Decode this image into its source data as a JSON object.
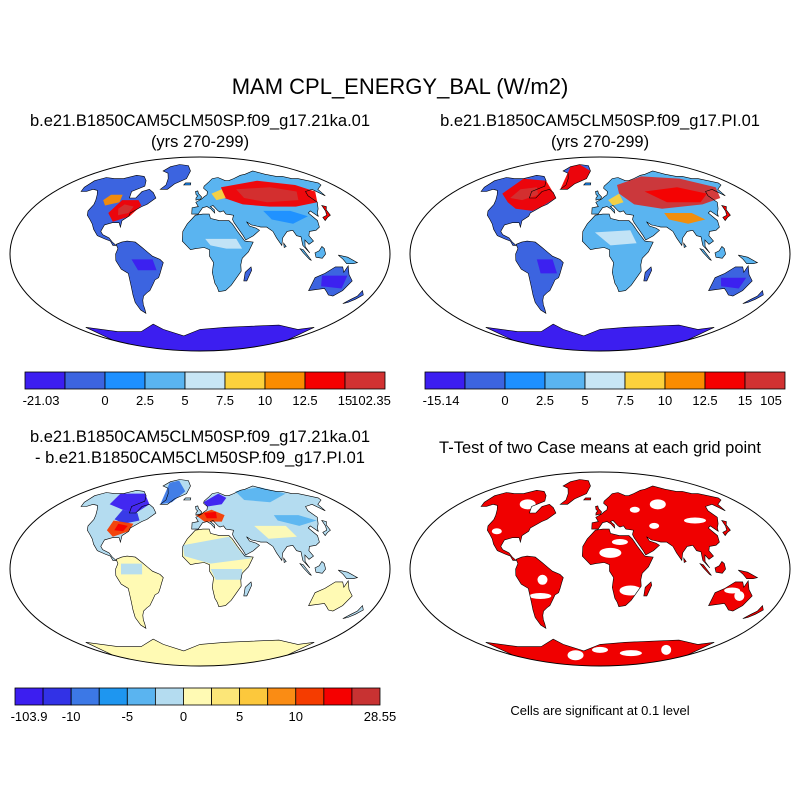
{
  "title": "MAM CPL_ENERGY_BAL (W/m2)",
  "panels": [
    {
      "id": "case1",
      "title_line1": "b.e21.B1850CAM5CLM50SP.f09_g17.21ka.01",
      "title_line2": "(yrs 270-299)",
      "colorbar": {
        "labels": [
          "-21.03",
          "0",
          "2.5",
          "5",
          "7.5",
          "10",
          "12.5",
          "15",
          "102.35"
        ],
        "colors": [
          "#3c1ef0",
          "#3c64e0",
          "#1e90ff",
          "#5ab4f0",
          "#c8e6f5",
          "#fcd23c",
          "#fa8c00",
          "#f50000",
          "#d23232"
        ]
      }
    },
    {
      "id": "case2",
      "title_line1": "b.e21.B1850CAM5CLM50SP.f09_g17.PI.01",
      "title_line2": "(yrs 270-299)",
      "colorbar": {
        "labels": [
          "-15.14",
          "0",
          "2.5",
          "5",
          "7.5",
          "10",
          "12.5",
          "15",
          "105"
        ],
        "colors": [
          "#3c1ef0",
          "#3c64e0",
          "#1e90ff",
          "#5ab4f0",
          "#c8e6f5",
          "#fcd23c",
          "#fa8c00",
          "#f50000",
          "#d23232"
        ]
      }
    },
    {
      "id": "diff",
      "title_line1": "b.e21.B1850CAM5CLM50SP.f09_g17.21ka.01",
      "title_line2": "- b.e21.B1850CAM5CLM50SP.f09_g17.PI.01",
      "colorbar": {
        "labels": [
          "-103.9",
          "-10",
          "-5",
          "0",
          "5",
          "10",
          "28.55"
        ],
        "colors": [
          "#3c1ef0",
          "#3232e6",
          "#3c78e6",
          "#1e96f0",
          "#5ab4f0",
          "#b4dcf0",
          "#fffab4",
          "#fce678",
          "#fcc83c",
          "#fa8c14",
          "#f53c00",
          "#f50000",
          "#c83232"
        ]
      }
    },
    {
      "id": "ttest",
      "title_line1": "T-Test of two Case means at each grid point",
      "note": "Cells are significant at 0.1 level"
    }
  ],
  "colors": {
    "ocean": "#ffffff",
    "coast": "#000000",
    "significance": "#f00000"
  }
}
